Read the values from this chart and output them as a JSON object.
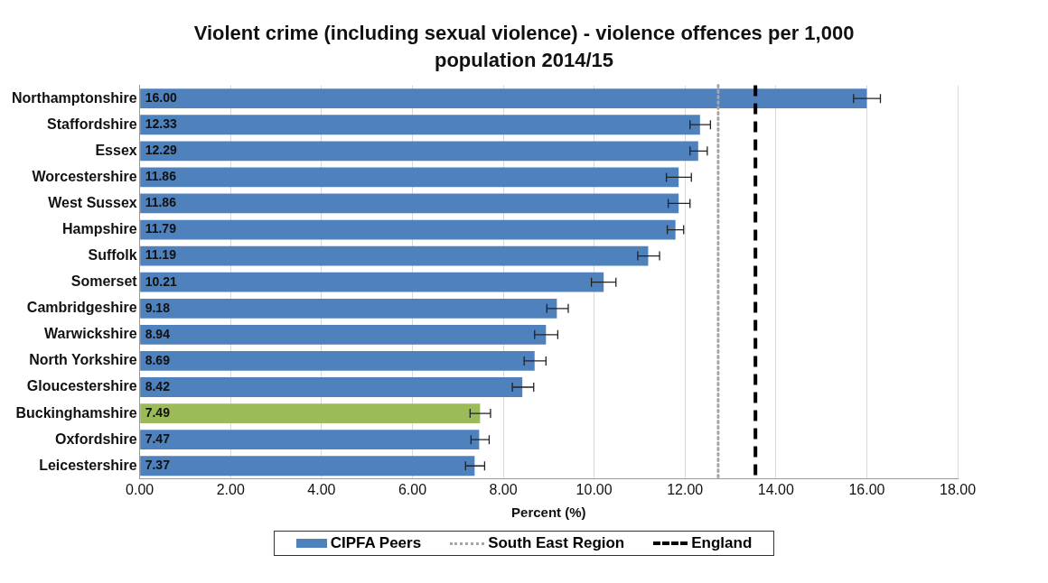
{
  "chart_data": {
    "type": "bar",
    "orientation": "horizontal",
    "title": "Violent crime (including sexual violence) - violence offences per 1,000 population 2014/15",
    "xlabel": "Percent (%)",
    "categories": [
      "Northamptonshire",
      "Staffordshire",
      "Essex",
      "Worcestershire",
      "West Sussex",
      "Hampshire",
      "Suffolk",
      "Somerset",
      "Cambridgeshire",
      "Warwickshire",
      "North Yorkshire",
      "Gloucestershire",
      "Buckinghamshire",
      "Oxfordshire",
      "Leicestershire"
    ],
    "series": [
      {
        "name": "CIPFA Peers",
        "color": "#4f81bd",
        "colors": [
          "#4f81bd",
          "#4f81bd",
          "#4f81bd",
          "#4f81bd",
          "#4f81bd",
          "#4f81bd",
          "#4f81bd",
          "#4f81bd",
          "#4f81bd",
          "#4f81bd",
          "#4f81bd",
          "#4f81bd",
          "#9bbb59",
          "#4f81bd",
          "#4f81bd"
        ],
        "values": [
          16.0,
          12.33,
          12.29,
          11.86,
          11.86,
          11.79,
          11.19,
          10.21,
          9.18,
          8.94,
          8.69,
          8.42,
          7.49,
          7.47,
          7.37
        ],
        "value_labels": [
          "16.00",
          "12.33",
          "12.29",
          "11.86",
          "11.86",
          "11.79",
          "11.19",
          "10.21",
          "9.18",
          "8.94",
          "8.69",
          "8.42",
          "7.49",
          "7.47",
          "7.37"
        ],
        "errors": [
          [
            15.71,
            16.3
          ],
          [
            12.11,
            12.56
          ],
          [
            12.11,
            12.49
          ],
          [
            11.59,
            12.14
          ],
          [
            11.63,
            12.11
          ],
          [
            11.61,
            11.97
          ],
          [
            10.96,
            11.44
          ],
          [
            9.94,
            10.48
          ],
          [
            8.96,
            9.43
          ],
          [
            8.69,
            9.2
          ],
          [
            8.46,
            8.94
          ],
          [
            8.2,
            8.67
          ],
          [
            7.27,
            7.72
          ],
          [
            7.29,
            7.69
          ],
          [
            7.17,
            7.59
          ]
        ]
      }
    ],
    "ref_lines": [
      {
        "axis": "x",
        "value": 12.73,
        "label": "South East Region",
        "color": "#a6a6a6",
        "line_style": "dotted"
      },
      {
        "axis": "x",
        "value": 13.55,
        "label": "England",
        "color": "#000000",
        "line_style": "dashed"
      }
    ],
    "xlim": [
      0,
      18
    ],
    "xticks": [
      {
        "value": 0,
        "label": "0.00"
      },
      {
        "value": 2,
        "label": "2.00"
      },
      {
        "value": 4,
        "label": "4.00"
      },
      {
        "value": 6,
        "label": "6.00"
      },
      {
        "value": 8,
        "label": "8.00"
      },
      {
        "value": 10,
        "label": "10.00"
      },
      {
        "value": 12,
        "label": "12.00"
      },
      {
        "value": 14,
        "label": "14.00"
      },
      {
        "value": 16,
        "label": "16.00"
      },
      {
        "value": 18,
        "label": "18.00"
      }
    ],
    "grid": "x",
    "legend": "bottom"
  }
}
